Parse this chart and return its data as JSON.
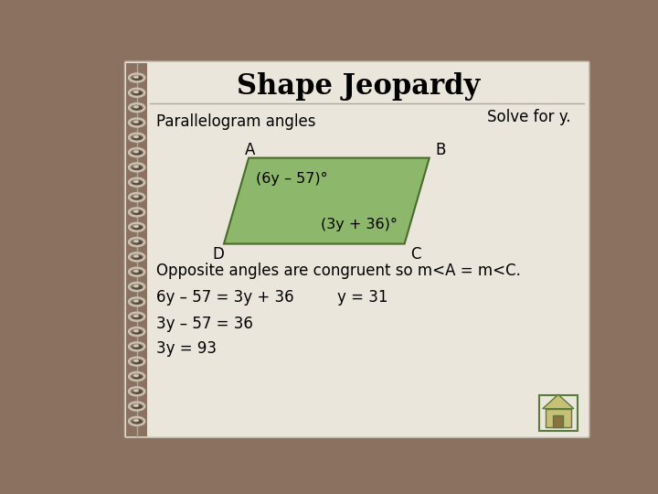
{
  "title": "Shape Jeopardy",
  "bg_outer": "#8B7260",
  "bg_page": "#EAE6DC",
  "title_color": "#000000",
  "title_fontsize": 22,
  "subtitle": "Parallelogram angles",
  "subtitle_fontsize": 12,
  "solve_text": "Solve for y.",
  "solve_fontsize": 12,
  "para_color": "#8DB86B",
  "para_edge_color": "#4A6A2A",
  "label_A": "A",
  "label_B": "B",
  "label_C": "C",
  "label_D": "D",
  "angle_A": "(6y – 57)°",
  "angle_C": "(3y + 36)°",
  "line1": "Opposite angles are congruent so m<A = m<C.",
  "line2": "6y – 57 = 3y + 36",
  "line3": "y = 31",
  "line4": "3y – 57 = 36",
  "line5": "3y = 93",
  "text_fontsize": 12,
  "divider_color": "#B0A898",
  "house_bg": "#C8C078",
  "house_edge": "#5A7A3A",
  "house_door": "#8B7040"
}
